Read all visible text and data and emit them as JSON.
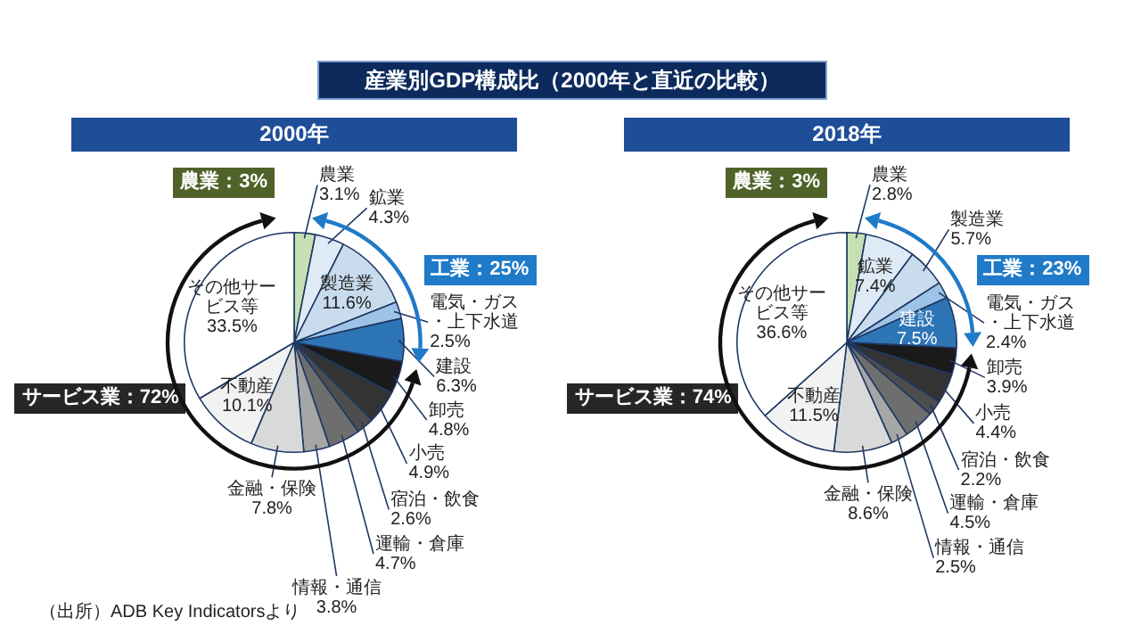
{
  "chart_data": [
    {
      "type": "pie",
      "title": "産業別GDP構成比（2000年と直近の比較）",
      "subtitle": "2000年",
      "categories": [
        "農業",
        "鉱業",
        "製造業",
        "電気・ガス・上下水道",
        "建設",
        "卸売",
        "小売",
        "宿泊・飲食",
        "運輸・倉庫",
        "情報・通信",
        "金融・保険",
        "不動産",
        "その他サービス等"
      ],
      "values": [
        3.1,
        4.3,
        11.6,
        2.5,
        6.3,
        4.8,
        4.9,
        2.6,
        4.7,
        3.8,
        7.8,
        10.1,
        33.5
      ],
      "value_labels": [
        "3.1%",
        "4.3%",
        "11.6%",
        "2.5%",
        "6.3%",
        "4.8%",
        "4.9%",
        "2.6%",
        "4.7%",
        "3.8%",
        "7.8%",
        "10.1%",
        "33.5%"
      ],
      "colors": [
        "#c6e0b4",
        "#deebf7",
        "#c9dcee",
        "#9dc3e6",
        "#2e75b6",
        "#1a1a1a",
        "#333333",
        "#4d4d4d",
        "#6e6e6e",
        "#a6a6a6",
        "#d9d9d9",
        "#f2f2f2",
        "#ffffff"
      ],
      "annotations": [
        "農業：3%",
        "工業：25%",
        "サービス業：72%",
        "（出所）ADB Key Indicatorsより"
      ]
    },
    {
      "type": "pie",
      "subtitle": "2018年",
      "categories": [
        "農業",
        "鉱業",
        "製造業",
        "電気・ガス・上下水道",
        "建設",
        "卸売",
        "小売",
        "宿泊・飲食",
        "運輸・倉庫",
        "情報・通信",
        "金融・保険",
        "不動産",
        "その他サービス等"
      ],
      "values": [
        2.8,
        7.4,
        5.7,
        2.4,
        7.5,
        3.9,
        4.4,
        2.2,
        4.5,
        2.5,
        8.6,
        11.5,
        36.6
      ],
      "value_labels": [
        "2.8%",
        "7.4%",
        "5.7%",
        "2.4%",
        "7.5%",
        "3.9%",
        "4.4%",
        "2.2%",
        "4.5%",
        "2.5%",
        "8.6%",
        "11.5%",
        "36.6%"
      ],
      "colors": [
        "#c6e0b4",
        "#deebf7",
        "#c9dcee",
        "#9dc3e6",
        "#2e75b6",
        "#1a1a1a",
        "#333333",
        "#4d4d4d",
        "#6e6e6e",
        "#a6a6a6",
        "#d9d9d9",
        "#f2f2f2",
        "#ffffff"
      ],
      "annotations": [
        "農業：3%",
        "工業：23%",
        "サービス業：74%"
      ]
    }
  ]
}
